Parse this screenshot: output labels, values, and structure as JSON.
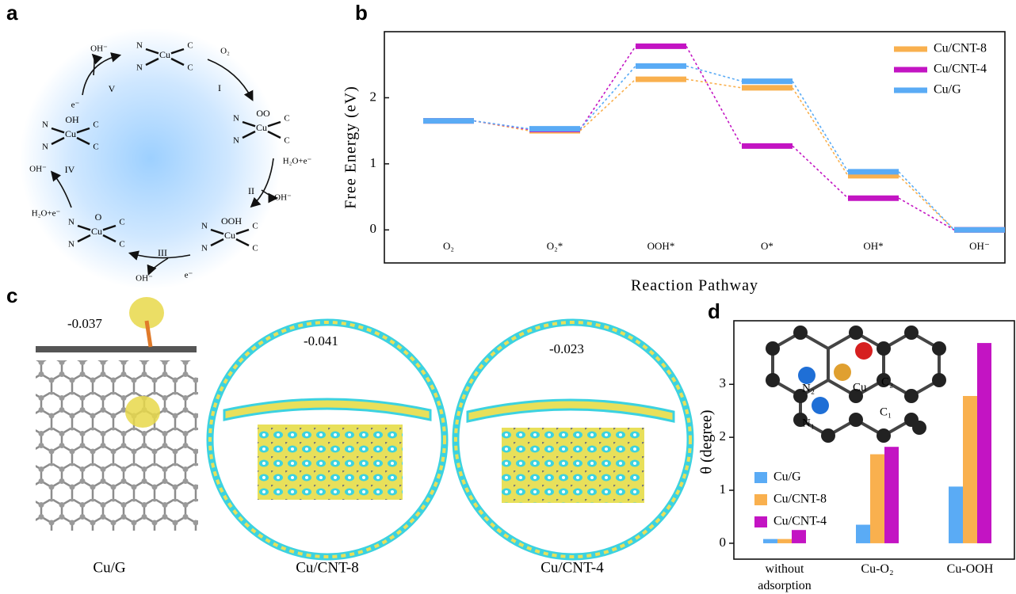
{
  "panel_labels": [
    "a",
    "b",
    "c",
    "d"
  ],
  "chart_data": [
    {
      "type": "energy",
      "x_label": "Reaction Pathway",
      "y_label": "Free Energy (eV)",
      "categories": [
        "O₂",
        "O₂*",
        "OOH*",
        "O*",
        "OH*",
        "OH⁻"
      ],
      "series": [
        {
          "name": "Cu/CNT-8",
          "color": "#f9b04e",
          "values": [
            1.65,
            1.5,
            2.28,
            2.15,
            0.82,
            0
          ]
        },
        {
          "name": "Cu/CNT-4",
          "color": "#c314c3",
          "values": [
            1.65,
            1.52,
            2.78,
            1.27,
            0.48,
            0
          ]
        },
        {
          "name": "Cu/G",
          "color": "#5aabf5",
          "values": [
            1.65,
            1.53,
            2.48,
            2.25,
            0.88,
            0
          ]
        }
      ],
      "ylim": [
        -0.5,
        3
      ],
      "yticks": [
        0,
        1,
        2
      ],
      "legend": "upper right"
    },
    {
      "type": "bar",
      "y_label": "θ (degree)",
      "categories": [
        "without adsorption",
        "Cu-O₂",
        "Cu-OOH"
      ],
      "series": [
        {
          "name": "Cu/G",
          "color": "#5aabf5",
          "values": [
            0.08,
            0.35,
            1.07
          ]
        },
        {
          "name": "Cu/CNT-8",
          "color": "#f9b04e",
          "values": [
            0.08,
            1.68,
            2.78
          ]
        },
        {
          "name": "Cu/CNT-4",
          "color": "#c314c3",
          "values": [
            0.25,
            1.82,
            3.78
          ]
        }
      ],
      "ylim": [
        -0.3,
        4.2
      ],
      "yticks": [
        0,
        1,
        2,
        3
      ],
      "legend": "lower left",
      "annotations": [
        "N₂",
        "Cu",
        "C₂",
        "C₁",
        "N₁"
      ]
    }
  ],
  "cycle": {
    "steps": [
      "I",
      "II",
      "III",
      "IV",
      "V"
    ],
    "adsorbates": [
      "OO",
      "OOH",
      "O",
      "OH"
    ],
    "reagents": {
      "o2": "O₂",
      "h2o": "H₂O+e⁻",
      "oh": "OH⁻",
      "e": "e⁻"
    },
    "atoms": {
      "n": "N",
      "c": "C",
      "cu": "Cu"
    }
  },
  "structures": [
    {
      "name": "Cu/G",
      "charge": -0.037
    },
    {
      "name": "Cu/CNT-8",
      "charge": -0.041
    },
    {
      "name": "Cu/CNT-4",
      "charge": -0.023
    }
  ]
}
